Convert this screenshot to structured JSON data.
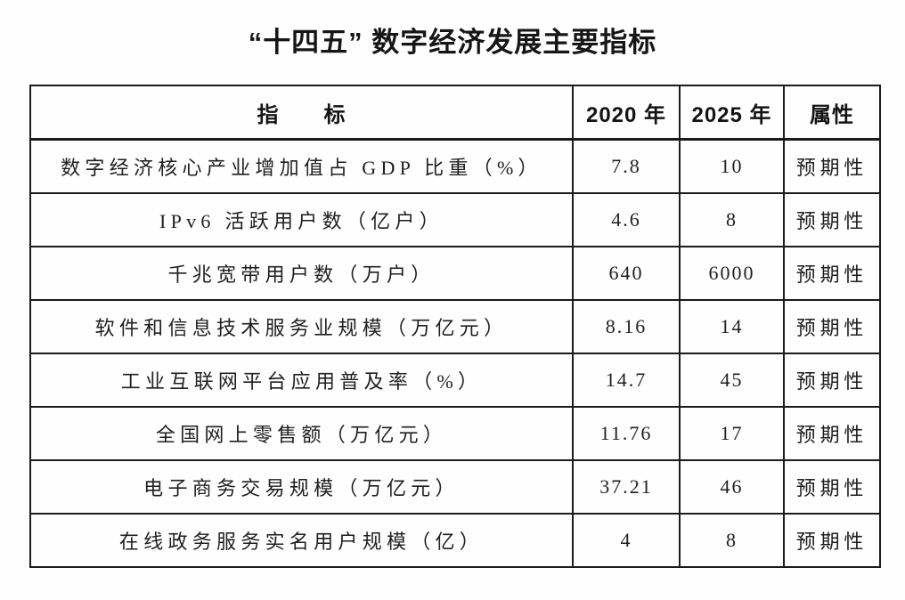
{
  "title": "“十四五” 数字经济发展主要指标",
  "table": {
    "headers": {
      "indicator": "指　　标",
      "y2020": "2020 年",
      "y2025": "2025 年",
      "attribute": "属性"
    },
    "rows": [
      {
        "indicator": "数字经济核心产业增加值占 GDP 比重（%）",
        "y2020": "7.8",
        "y2025": "10",
        "attribute": "预期性"
      },
      {
        "indicator": "IPv6 活跃用户数（亿户）",
        "y2020": "4.6",
        "y2025": "8",
        "attribute": "预期性"
      },
      {
        "indicator": "千兆宽带用户数（万户）",
        "y2020": "640",
        "y2025": "6000",
        "attribute": "预期性"
      },
      {
        "indicator": "软件和信息技术服务业规模（万亿元）",
        "y2020": "8.16",
        "y2025": "14",
        "attribute": "预期性"
      },
      {
        "indicator": "工业互联网平台应用普及率（%）",
        "y2020": "14.7",
        "y2025": "45",
        "attribute": "预期性"
      },
      {
        "indicator": "全国网上零售额（万亿元）",
        "y2020": "11.76",
        "y2025": "17",
        "attribute": "预期性"
      },
      {
        "indicator": "电子商务交易规模（万亿元）",
        "y2020": "37.21",
        "y2025": "46",
        "attribute": "预期性"
      },
      {
        "indicator": "在线政务服务实名用户规模（亿）",
        "y2020": "4",
        "y2025": "8",
        "attribute": "预期性"
      }
    ]
  }
}
